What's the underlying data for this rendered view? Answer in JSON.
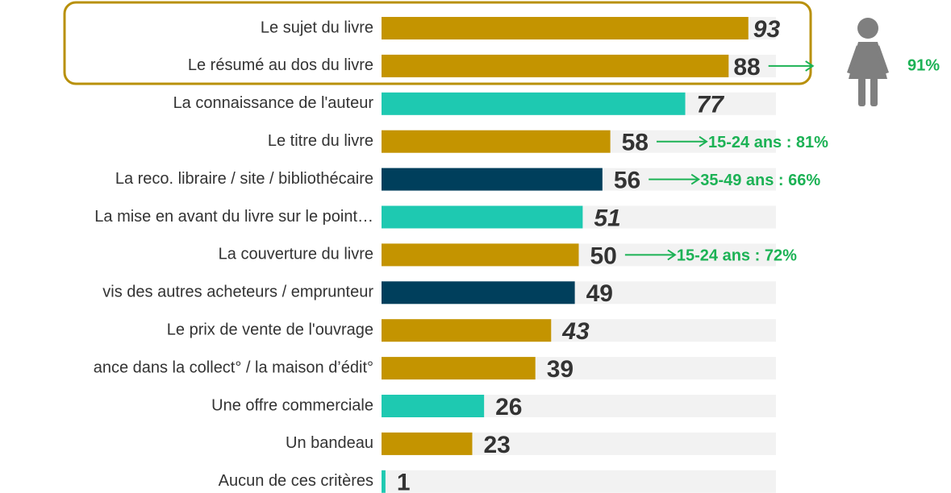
{
  "chart_data": {
    "type": "bar",
    "orientation": "horizontal",
    "categories": [
      "Le sujet du livre",
      "Le résumé au dos du livre",
      "La connaissance de l'auteur",
      "Le titre du livre",
      "La reco. libraire / site / bibliothécaire",
      "La mise en avant du livre sur le point…",
      "La couverture du livre",
      "vis des autres acheteurs / emprunteur",
      "Le prix de vente de l'ouvrage",
      "ance dans la collect° / la maison d’édit°",
      "Une offre commerciale",
      "Un bandeau",
      "Aucun de ces critères"
    ],
    "values": [
      93,
      88,
      77,
      58,
      56,
      51,
      50,
      49,
      43,
      39,
      26,
      23,
      1
    ],
    "colors": [
      "#c49400",
      "#c49400",
      "#1ec9b1",
      "#c49400",
      "#003f5c",
      "#1ec9b1",
      "#c49400",
      "#003f5c",
      "#c49400",
      "#c49400",
      "#1ec9b1",
      "#c49400",
      "#1ec9b1"
    ],
    "italic_values": [
      true,
      false,
      true,
      false,
      false,
      true,
      false,
      false,
      true,
      false,
      false,
      false,
      false
    ],
    "annotations": [
      null,
      "91%",
      null,
      "15-24 ans : 81%",
      "35-49 ans : 66%",
      null,
      "15-24 ans : 72%",
      null,
      null,
      null,
      null,
      null,
      null
    ],
    "annotation_color": "#1cb255",
    "xlim": [
      0,
      100
    ]
  }
}
